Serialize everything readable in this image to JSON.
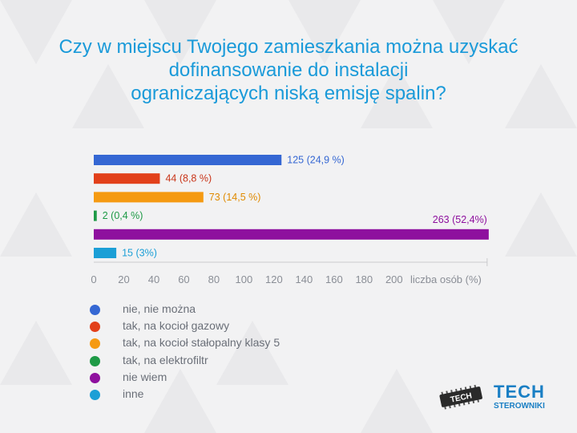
{
  "title_lines": [
    "Czy w miejscu Twojego zamieszkania można uzyskać",
    "dofinansowanie do instalacji",
    "ograniczających niską emisję spalin?"
  ],
  "chart_data": {
    "type": "bar",
    "orientation": "horizontal",
    "title": "Czy w miejscu Twojego zamieszkania można uzyskać dofinansowanie do instalacji ograniczających niską emisję spalin?",
    "categories": [
      "nie, nie można",
      "tak, na kocioł gazowy",
      "tak, na kocioł stałopalny klasy 5",
      "tak, na elektrofiltr",
      "nie wiem",
      "inne"
    ],
    "values": [
      125,
      44,
      73,
      2,
      263,
      15
    ],
    "data_labels": [
      "125 (24,9 %)",
      "44 (8,8 %)",
      "73 (14,5 %)",
      "2 (0,4 %)",
      "263 (52,4%)",
      "15 (3%)"
    ],
    "colors": [
      "#3567d3",
      "#e2401a",
      "#f59a12",
      "#1e9a46",
      "#8e109e",
      "#1c9fd6"
    ],
    "label_colors": [
      "#3567d3",
      "#c9361a",
      "#e08a00",
      "#1e9a46",
      "#8e109e",
      "#1c9fd6"
    ],
    "xticks": [
      0,
      20,
      40,
      60,
      80,
      100,
      120,
      140,
      160,
      180,
      200
    ],
    "xlabel": "liczba osób (%)",
    "xlim": [
      0,
      263
    ]
  },
  "legend": [
    {
      "label": "nie, nie można",
      "color": "#3567d3"
    },
    {
      "label": "tak, na kocioł gazowy",
      "color": "#e2401a"
    },
    {
      "label": "tak, na kocioł stałopalny klasy 5",
      "color": "#f59a12"
    },
    {
      "label": "tak, na elektrofiltr",
      "color": "#1e9a46"
    },
    {
      "label": "nie wiem",
      "color": "#8e109e"
    },
    {
      "label": "inne",
      "color": "#1c9fd6"
    }
  ],
  "logo": {
    "chip_text": "TECH",
    "brand": "TECH",
    "subtitle": "STEROWNIKI"
  }
}
